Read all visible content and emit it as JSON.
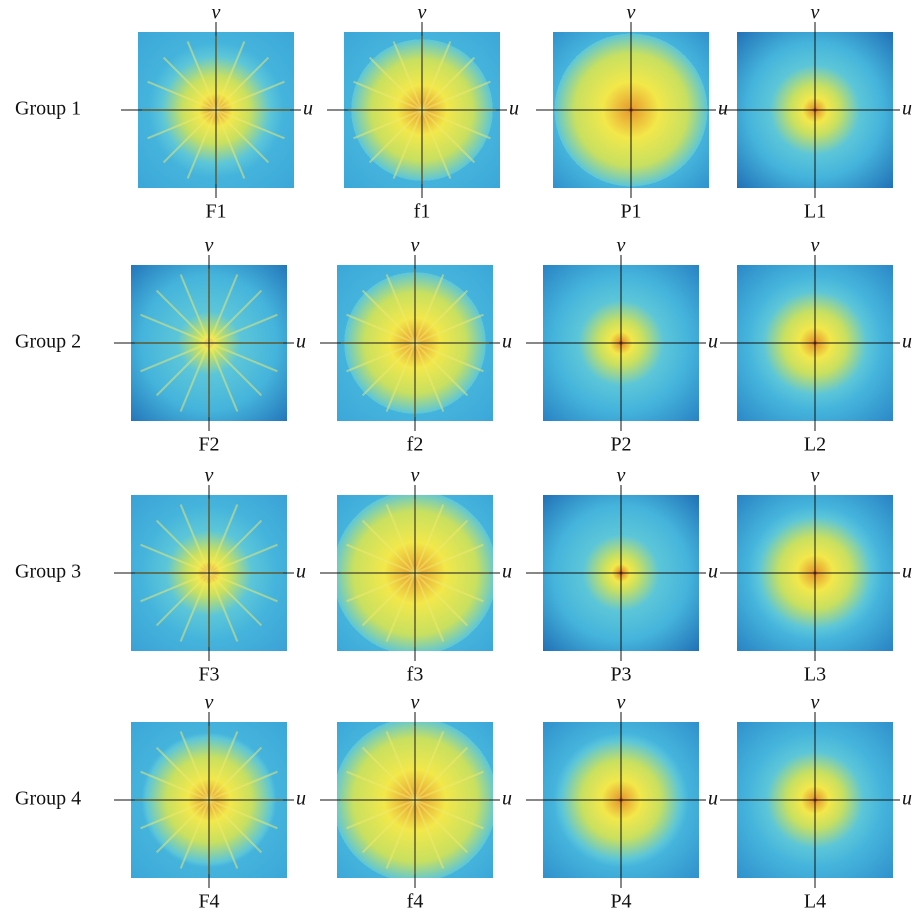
{
  "axes": {
    "u": "u",
    "v": "v"
  },
  "rows": [
    {
      "label": "Group 1",
      "panels": [
        "F1",
        "f1",
        "P1",
        "L1"
      ]
    },
    {
      "label": "Group 2",
      "panels": [
        "F2",
        "f2",
        "P2",
        "L2"
      ]
    },
    {
      "label": "Group 3",
      "panels": [
        "F3",
        "f3",
        "P3",
        "L3"
      ]
    },
    {
      "label": "Group 4",
      "panels": [
        "F4",
        "f4",
        "P4",
        "L4"
      ]
    }
  ]
}
